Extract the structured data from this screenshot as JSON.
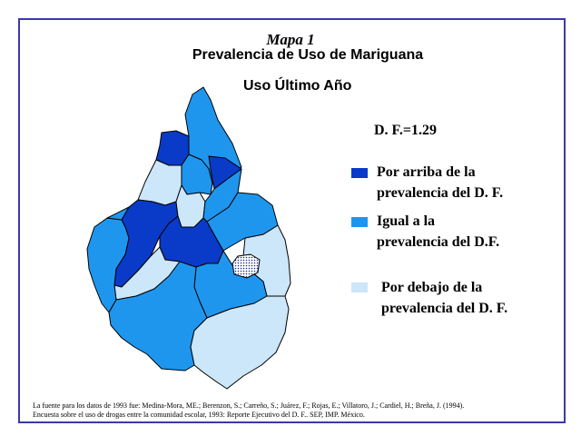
{
  "map": {
    "title_line1": "Mapa 1",
    "title_line2": "Prevalencia de Uso de Mariguana",
    "subtitle": "Uso Último Año",
    "df_value": "D. F.=1.29"
  },
  "legend": {
    "items": [
      {
        "line1": "Por arriba de la",
        "line2": "prevalencia del D. F.",
        "color": "#0a3ac8"
      },
      {
        "line1": "Igual a la",
        "line2": "prevalencia del D.F.",
        "color": "#1f96ee"
      },
      {
        "line1": "Por debajo de la",
        "line2": "prevalencia del D. F.",
        "color": "#cce6fa"
      }
    ]
  },
  "colors": {
    "above": "#0a3ac8",
    "equal": "#1f96ee",
    "below": "#cce6fa",
    "border": "#3a3aa8",
    "outline": "#000000"
  },
  "regions": [
    {
      "category": "equal",
      "fill": "#1f96ee"
    },
    {
      "category": "above",
      "fill": "#0a3ac8"
    },
    {
      "category": "below",
      "fill": "#cce6fa"
    },
    {
      "category": "equal",
      "fill": "#1f96ee"
    },
    {
      "category": "above",
      "fill": "#0a3ac8"
    },
    {
      "category": "above",
      "fill": "#0a3ac8"
    },
    {
      "category": "below",
      "fill": "#cce6fa"
    },
    {
      "category": "equal",
      "fill": "#1f96ee"
    },
    {
      "category": "above",
      "fill": "#0a3ac8"
    },
    {
      "category": "below",
      "fill": "#cce6fa"
    },
    {
      "category": "equal",
      "fill": "#1f96ee"
    },
    {
      "category": "below",
      "fill": "#cce6fa"
    },
    {
      "category": "equal",
      "fill": "#1f96ee"
    },
    {
      "category": "equal",
      "fill": "#1f96ee"
    },
    {
      "category": "equal",
      "fill": "#1f96ee"
    },
    {
      "category": "below",
      "fill": "#cce6fa"
    },
    {
      "category": "equal",
      "fill": "#1f96ee"
    }
  ],
  "source": {
    "line1": "La fuente para los datos de 1993 fue: Medina-Mora, ME.; Berenzon, S.; Carreño, S.; Juárez, F.; Rojas, E.; Villatoro, J.; Cardiel, H.; Breña, J. (1994).",
    "line2": "Encuesta sobre el uso de drogas entre la comunidad escolar, 1993: Reporte Ejecutivo del D. F.. SEP, IMP. México."
  }
}
